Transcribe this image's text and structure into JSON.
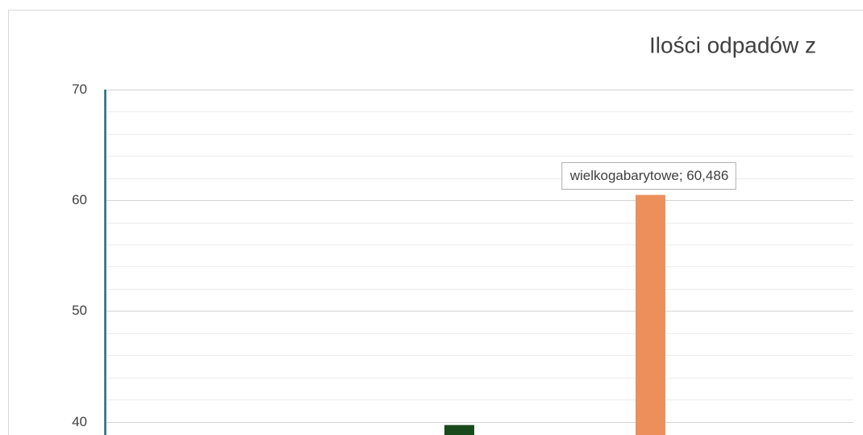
{
  "chart_data": {
    "type": "bar",
    "title": "Ilości odpadów z",
    "categories": [
      null,
      null
    ],
    "values": [
      39.7,
      60.486
    ],
    "value_labels": [
      null,
      "wielkogabarytowe; 60,486"
    ],
    "colors": [
      "#1a4a1c",
      "#ed8f5b"
    ],
    "ylim": [
      38.8,
      70
    ],
    "yticks": [
      40,
      50,
      60,
      70
    ],
    "minor_yticks": [
      42,
      44,
      46,
      48,
      52,
      54,
      56,
      58,
      62,
      64,
      66,
      68
    ],
    "grid": true
  }
}
